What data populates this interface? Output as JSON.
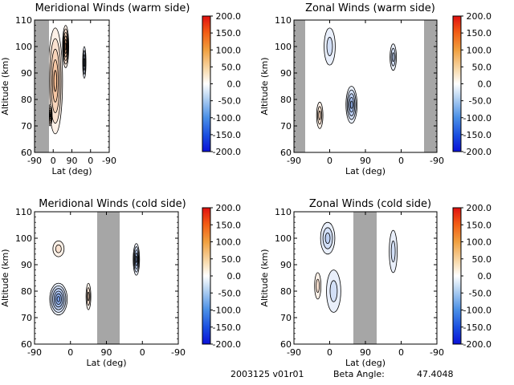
{
  "colors": {
    "positive": "#e8701a",
    "negative": "#1e5fd8",
    "night_band": "#a6a6a6",
    "contour": "#000000"
  },
  "colorbar": {
    "ticks": [
      "200.0",
      "150.0",
      "100.0",
      "50.0",
      "0.0",
      "-50.0",
      "-100.0",
      "-150.0",
      "-200.0"
    ],
    "range": [
      -200,
      200
    ]
  },
  "footer": {
    "id_text": "2003125 v01r01",
    "beta_label": "Beta Angle:",
    "beta_value": "47.4048"
  },
  "chart_data": [
    {
      "type": "heatmap",
      "title": "Meridional Winds (warm side)",
      "xlabel": "Lat (deg)",
      "ylabel": "Altitude (km)",
      "x_ticks": [
        "-90",
        "0",
        "90",
        "0",
        "-90"
      ],
      "y_ticks": [
        "60",
        "70",
        "80",
        "90",
        "100",
        "110"
      ],
      "ylim": [
        60,
        110
      ],
      "blobs": [
        {
          "lat": 10,
          "alt": 87,
          "sign": 1,
          "peak": 90,
          "spread_lat": 35,
          "spread_alt": 20
        },
        {
          "lat": -15,
          "alt": 74,
          "sign": 1,
          "peak": 120,
          "spread_lat": 10,
          "spread_alt": 4
        },
        {
          "lat": 60,
          "alt": 100,
          "sign": 1,
          "peak": 120,
          "spread_lat": 15,
          "spread_alt": 8
        },
        {
          "lat": 150,
          "alt": 94,
          "sign": -1,
          "peak": 80,
          "spread_lat": 8,
          "spread_alt": 6
        }
      ]
    },
    {
      "type": "heatmap",
      "title": "Zonal Winds (warm side)",
      "xlabel": "Lat (deg)",
      "ylabel": "Altitude (km)",
      "x_ticks": [
        "-90",
        "0",
        "90",
        "0",
        "-90"
      ],
      "y_ticks": [
        "60",
        "70",
        "80",
        "90",
        "100",
        "110"
      ],
      "ylim": [
        60,
        110
      ],
      "blobs": [
        {
          "lat": 0,
          "alt": 100,
          "sign": -1,
          "peak": 40,
          "spread_lat": 14,
          "spread_alt": 7
        },
        {
          "lat": 55,
          "alt": 78,
          "sign": -1,
          "peak": 90,
          "spread_lat": 14,
          "spread_alt": 7
        },
        {
          "lat": -25,
          "alt": 74,
          "sign": 1,
          "peak": 50,
          "spread_lat": 8,
          "spread_alt": 5
        },
        {
          "lat": 160,
          "alt": 96,
          "sign": -1,
          "peak": 50,
          "spread_lat": 8,
          "spread_alt": 5
        }
      ]
    },
    {
      "type": "heatmap",
      "title": "Meridional Winds (cold side)",
      "xlabel": "Lat (deg)",
      "ylabel": "Altitude (km)",
      "x_ticks": [
        "-90",
        "0",
        "90",
        "0",
        "-90"
      ],
      "y_ticks": [
        "60",
        "70",
        "80",
        "90",
        "100",
        "110"
      ],
      "ylim": [
        60,
        110
      ],
      "blobs": [
        {
          "lat": -30,
          "alt": 77,
          "sign": -1,
          "peak": 110,
          "spread_lat": 22,
          "spread_alt": 6
        },
        {
          "lat": -30,
          "alt": 96,
          "sign": 1,
          "peak": 40,
          "spread_lat": 14,
          "spread_alt": 3
        },
        {
          "lat": 45,
          "alt": 78,
          "sign": 1,
          "peak": 60,
          "spread_lat": 6,
          "spread_alt": 5
        },
        {
          "lat": 165,
          "alt": 92,
          "sign": -1,
          "peak": 90,
          "spread_lat": 8,
          "spread_alt": 6
        }
      ]
    },
    {
      "type": "heatmap",
      "title": "Zonal Winds (cold side)",
      "xlabel": "Lat (deg)",
      "ylabel": "Altitude (km)",
      "x_ticks": [
        "-90",
        "0",
        "90",
        "0",
        "-90"
      ],
      "y_ticks": [
        "60",
        "70",
        "80",
        "90",
        "100",
        "110"
      ],
      "ylim": [
        60,
        110
      ],
      "blobs": [
        {
          "lat": -5,
          "alt": 100,
          "sign": -1,
          "peak": 50,
          "spread_lat": 18,
          "spread_alt": 6
        },
        {
          "lat": 10,
          "alt": 80,
          "sign": -1,
          "peak": 40,
          "spread_lat": 18,
          "spread_alt": 8
        },
        {
          "lat": -30,
          "alt": 82,
          "sign": 1,
          "peak": 30,
          "spread_lat": 8,
          "spread_alt": 5
        },
        {
          "lat": 160,
          "alt": 95,
          "sign": -1,
          "peak": 30,
          "spread_lat": 10,
          "spread_alt": 8
        }
      ]
    }
  ]
}
